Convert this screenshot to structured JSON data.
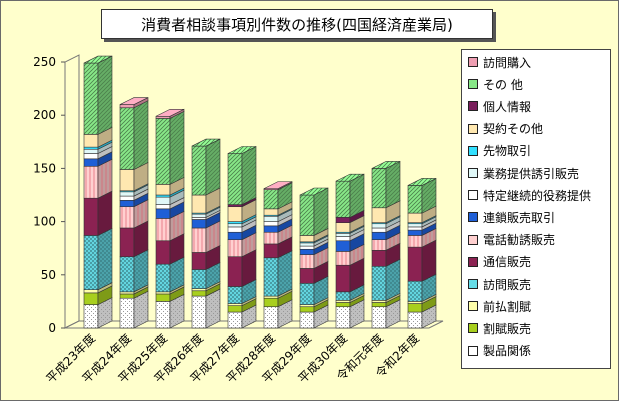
{
  "title": "消費者相談事項別件数の推移(四国経済産業局)",
  "chart_data": {
    "type": "bar",
    "stacked": true,
    "three_d": true,
    "categories": [
      "平成23年度",
      "平成24年度",
      "平成25年度",
      "平成26年度",
      "平成27年度",
      "平成28年度",
      "平成29年度",
      "平成30年度",
      "令和元年度",
      "令和2年度"
    ],
    "ylim": [
      0,
      250
    ],
    "yticks": [
      "0",
      "50",
      "100",
      "150",
      "200",
      "250"
    ],
    "grid": false,
    "legend_position": "right",
    "series": [
      {
        "name": "製品関係",
        "color": "#ffffff",
        "pattern": "dots",
        "values": [
          22,
          28,
          25,
          30,
          15,
          20,
          15,
          20,
          20,
          15
        ]
      },
      {
        "name": "割賦販売",
        "color": "#a8cf1e",
        "pattern": "none",
        "values": [
          11,
          4,
          7,
          5,
          6,
          8,
          5,
          4,
          4,
          8
        ]
      },
      {
        "name": "前払割賦",
        "color": "#ffffaa",
        "pattern": "none",
        "values": [
          3,
          2,
          2,
          2,
          2,
          2,
          2,
          2,
          2,
          2
        ]
      },
      {
        "name": "訪問販売",
        "color": "#66dde8",
        "pattern": "cross",
        "values": [
          51,
          33,
          26,
          18,
          16,
          36,
          20,
          8,
          32,
          19
        ]
      },
      {
        "name": "通信販売",
        "color": "#8b2252",
        "pattern": "none",
        "values": [
          35,
          27,
          22,
          16,
          28,
          13,
          14,
          25,
          15,
          32
        ]
      },
      {
        "name": "電話勧誘販売",
        "color": "#ffd0d0",
        "pattern": "vlines",
        "values": [
          30,
          20,
          21,
          23,
          16,
          11,
          13,
          13,
          10,
          11
        ]
      },
      {
        "name": "連鎖販売取引",
        "color": "#1f5fd6",
        "pattern": "none",
        "values": [
          7,
          6,
          9,
          8,
          7,
          6,
          5,
          10,
          7,
          5
        ]
      },
      {
        "name": "特定継続的役務提供",
        "color": "#ffffff",
        "pattern": "none",
        "values": [
          5,
          4,
          4,
          2,
          5,
          4,
          3,
          4,
          4,
          3
        ]
      },
      {
        "name": "業務提供誘引販売",
        "color": "#e0f8f8",
        "pattern": "none",
        "values": [
          4,
          4,
          7,
          3,
          3,
          5,
          3,
          3,
          4,
          3
        ]
      },
      {
        "name": "先物取引",
        "color": "#33e0ff",
        "pattern": "none",
        "values": [
          2,
          1,
          2,
          1,
          2,
          1,
          1,
          1,
          1,
          1
        ]
      },
      {
        "name": "契約その他",
        "color": "#ffe8b0",
        "pattern": "none",
        "values": [
          12,
          20,
          10,
          17,
          14,
          6,
          6,
          9,
          14,
          9
        ]
      },
      {
        "name": "個人情報",
        "color": "#7a1f5c",
        "pattern": "none",
        "values": [
          0,
          0,
          0,
          0,
          2,
          0,
          0,
          5,
          0,
          0
        ]
      },
      {
        "name": "その 他",
        "color": "#88e888",
        "pattern": "diag",
        "values": [
          67,
          58,
          62,
          46,
          48,
          18,
          38,
          34,
          37,
          26
        ]
      },
      {
        "name": "訪問購入",
        "color": "#ee9eb2",
        "pattern": "none",
        "values": [
          0,
          3,
          2,
          0,
          0,
          1,
          0,
          0,
          0,
          0
        ]
      }
    ]
  }
}
